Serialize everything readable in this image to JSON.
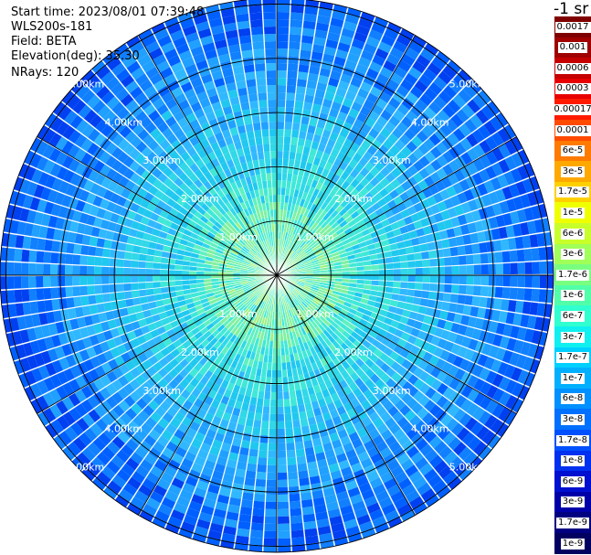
{
  "header": {
    "start_time": "Start time: 2023/08/01 07:39:48",
    "instrument": "WLS200s-181",
    "field": "Field: BETA",
    "elevation": "Elevation(deg): 35.30",
    "nrays": "NRays: 120"
  },
  "ppi": {
    "nrays": 120,
    "range_labels": [
      "1.00km",
      "2.00km",
      "3.00km",
      "4.00km",
      "5.00km"
    ],
    "background_color": "#3fa9f5"
  },
  "colorbar": {
    "title": "-1 sr",
    "levels": [
      {
        "label": "0.0017",
        "color": "#7f0000"
      },
      {
        "label": "0.001",
        "color": "#a00000"
      },
      {
        "label": "0.0006",
        "color": "#c40000"
      },
      {
        "label": "0.0003",
        "color": "#e80000"
      },
      {
        "label": "0.00017",
        "color": "#ff1a00"
      },
      {
        "label": "0.0001",
        "color": "#ff4a00"
      },
      {
        "label": "6e-5",
        "color": "#ff7a00"
      },
      {
        "label": "3e-5",
        "color": "#ffa800"
      },
      {
        "label": "1.7e-5",
        "color": "#ffd000"
      },
      {
        "label": "1e-5",
        "color": "#f0ff00"
      },
      {
        "label": "6e-6",
        "color": "#c8ff2a"
      },
      {
        "label": "3e-6",
        "color": "#a0ff58"
      },
      {
        "label": "1.7e-6",
        "color": "#78ff80"
      },
      {
        "label": "1e-6",
        "color": "#50ffa8"
      },
      {
        "label": "6e-7",
        "color": "#30ffd0"
      },
      {
        "label": "3e-7",
        "color": "#10f0f0"
      },
      {
        "label": "1.7e-7",
        "color": "#00d0ff"
      },
      {
        "label": "1e-7",
        "color": "#00b0ff"
      },
      {
        "label": "6e-8",
        "color": "#0090ff"
      },
      {
        "label": "3e-8",
        "color": "#0070ff"
      },
      {
        "label": "1.7e-8",
        "color": "#0050ff"
      },
      {
        "label": "1e-8",
        "color": "#0030f0"
      },
      {
        "label": "6e-9",
        "color": "#0010d0"
      },
      {
        "label": "3e-9",
        "color": "#0000a8"
      },
      {
        "label": "1.7e-9",
        "color": "#000080"
      },
      {
        "label": "1e-9",
        "color": "#000060"
      }
    ]
  }
}
